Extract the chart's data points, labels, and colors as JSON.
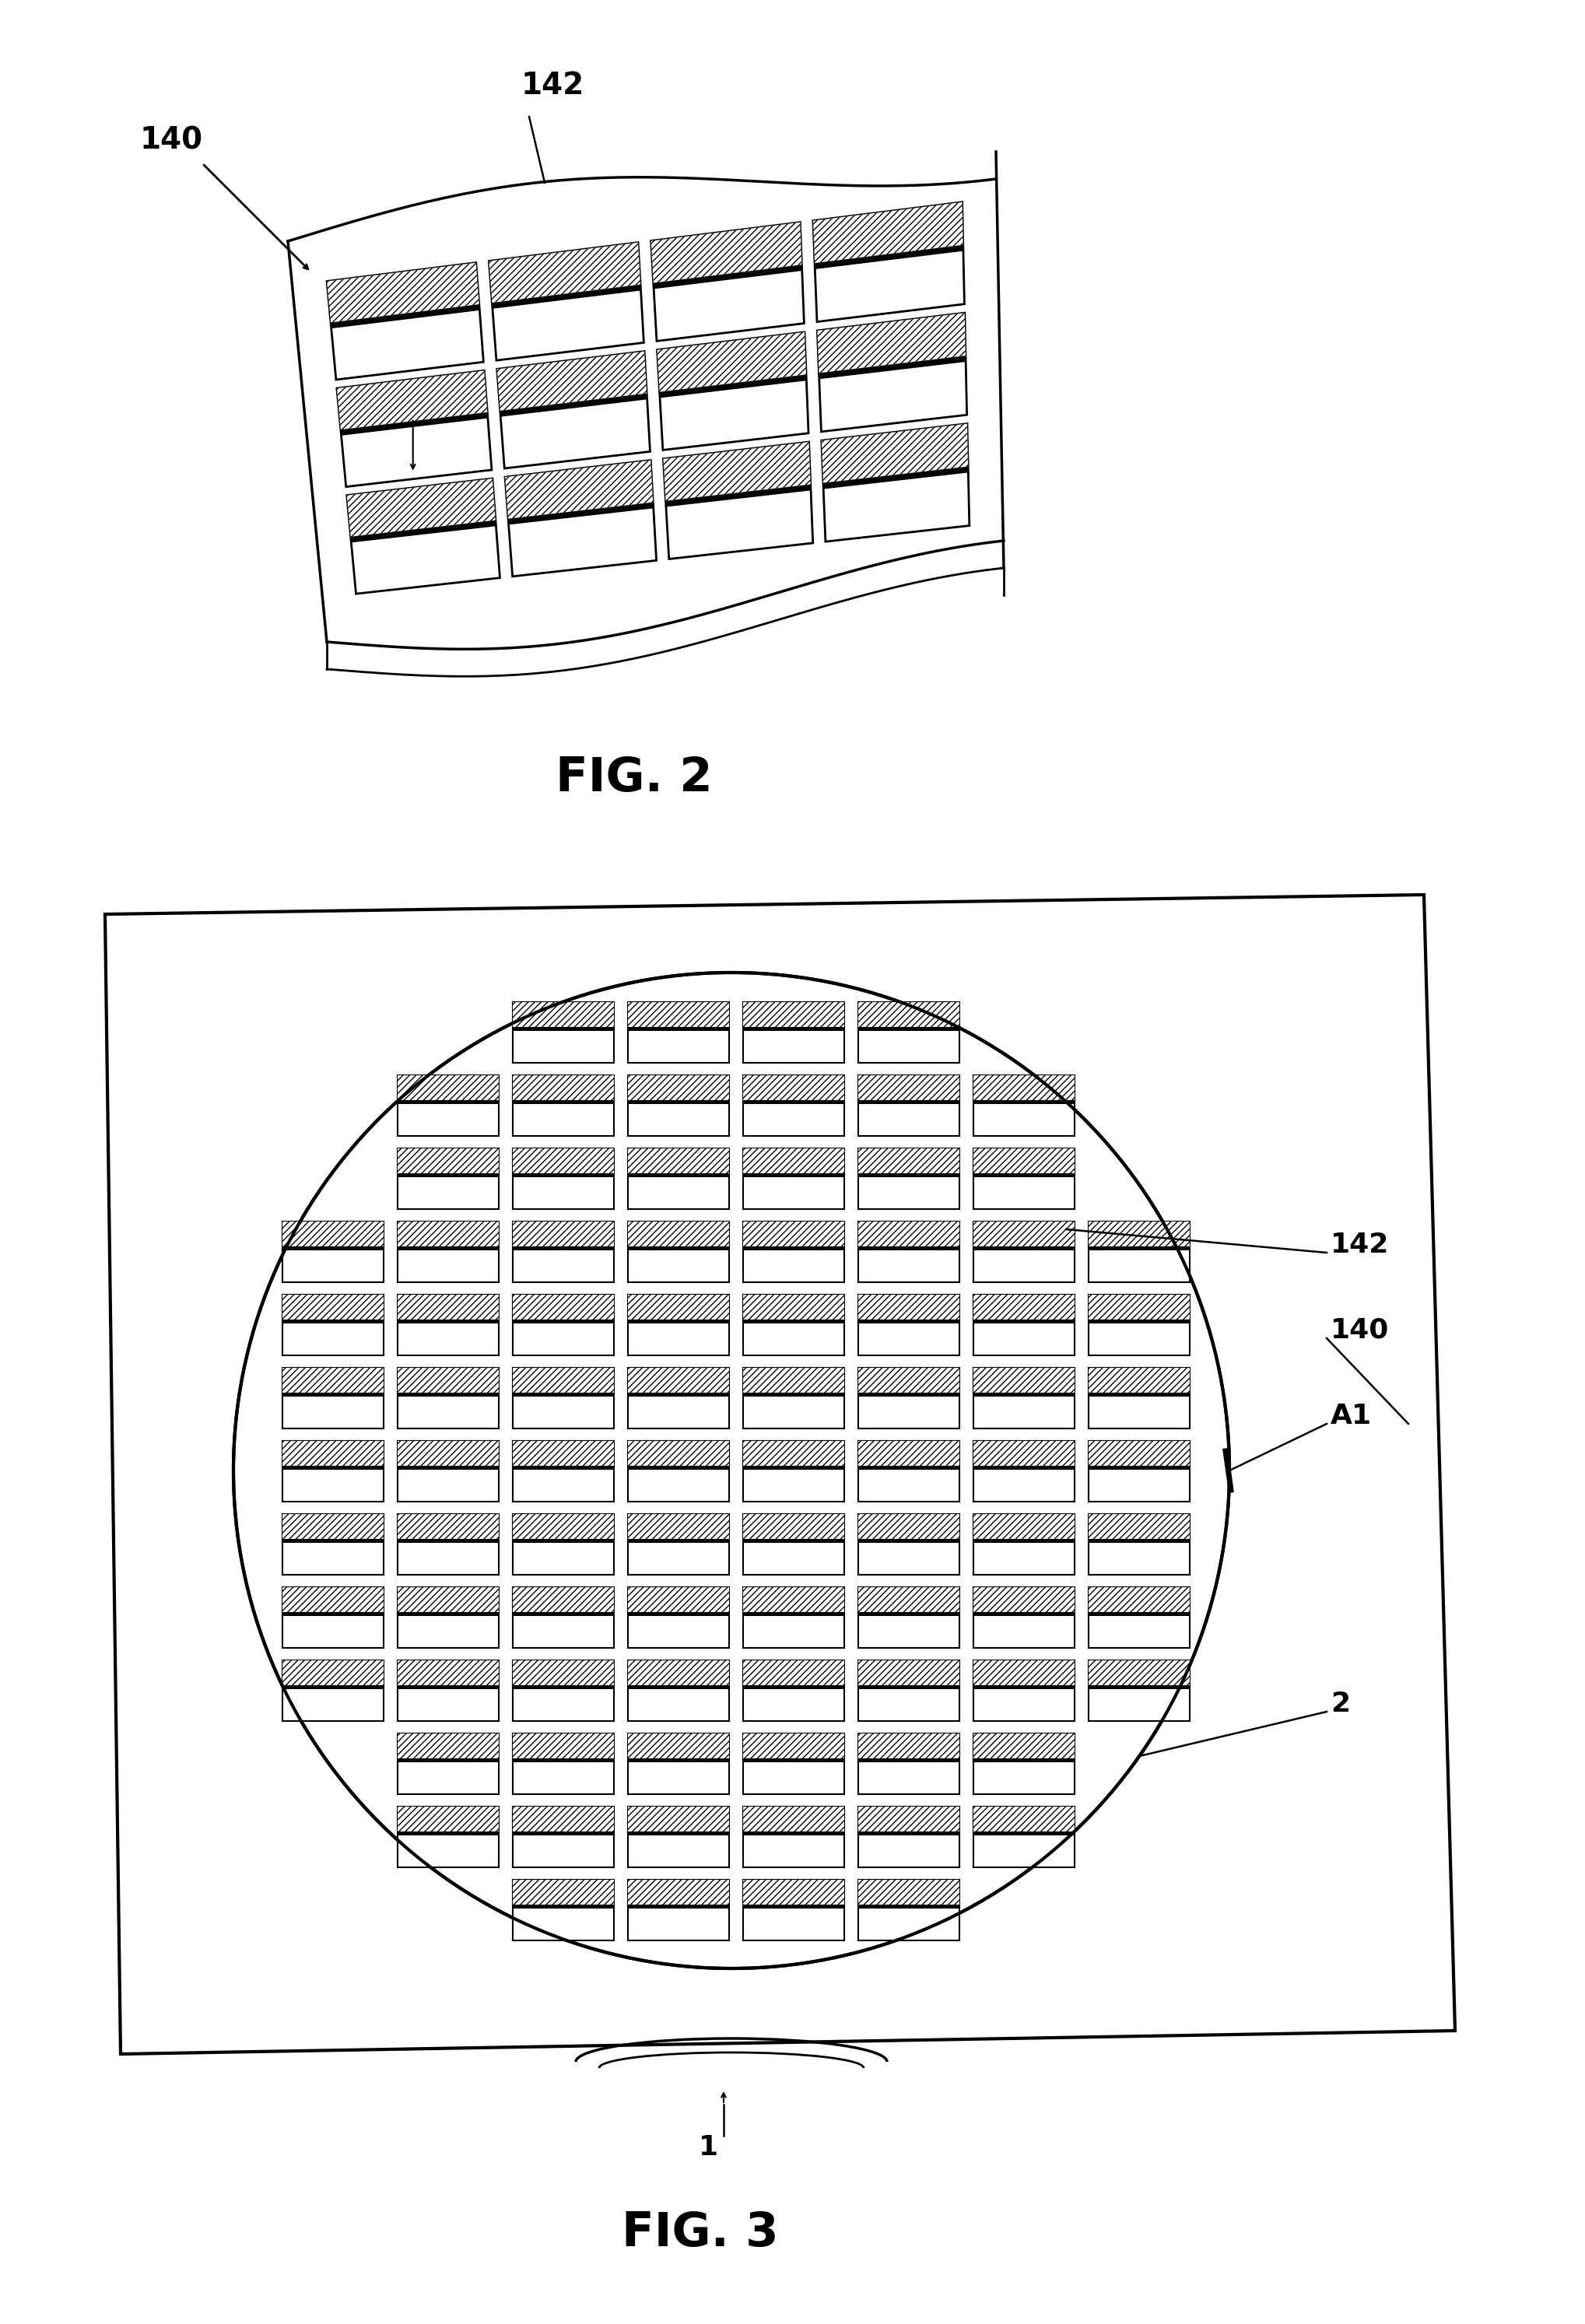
{
  "fig_width": 20.37,
  "fig_height": 29.87,
  "bg_color": "#ffffff",
  "line_color": "#000000",
  "fig2_label": "FIG. 2",
  "fig3_label": "FIG. 3",
  "label_140_fig2": "140",
  "label_142_fig2": "142",
  "label_140_fig3": "140",
  "label_142_fig3": "142",
  "label_A1": "A1",
  "label_2": "2",
  "label_1": "1"
}
